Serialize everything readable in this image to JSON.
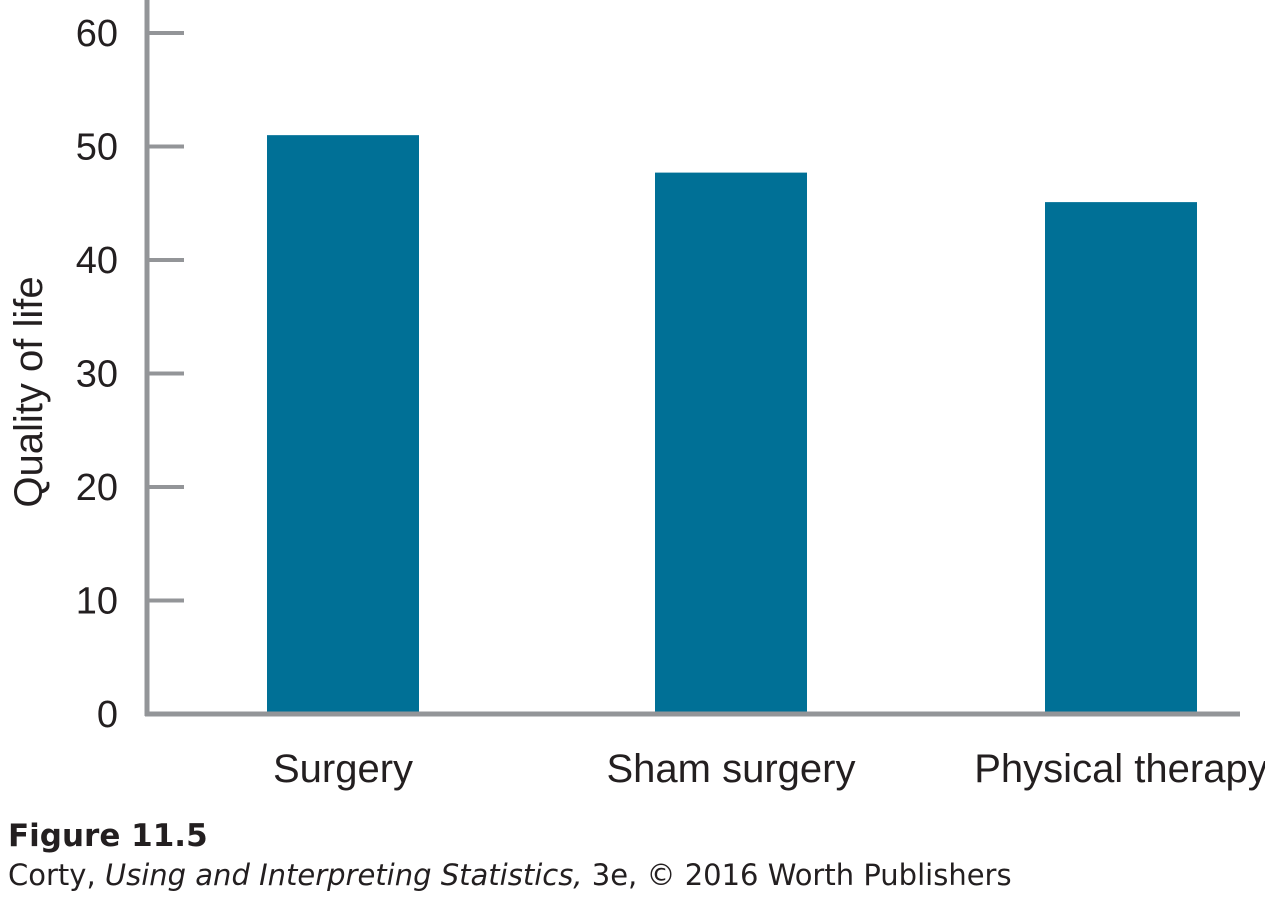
{
  "chart_data": {
    "type": "bar",
    "categories": [
      "Surgery",
      "Sham surgery",
      "Physical therapy"
    ],
    "values": [
      51,
      47.7,
      45.1
    ],
    "ylabel": "Quality of life",
    "ylim": [
      0,
      60
    ],
    "yticks": [
      0,
      10,
      20,
      30,
      40,
      50,
      60
    ],
    "grid": false,
    "legend": "none",
    "bar_color": "#007096",
    "axis_color": "#939598"
  },
  "caption": {
    "figure_number": "Figure 11.5",
    "author": "Corty, ",
    "book_title": "Using and Interpreting Statistics,",
    "edition_publisher": " 3e, © 2016 Worth Publishers"
  }
}
